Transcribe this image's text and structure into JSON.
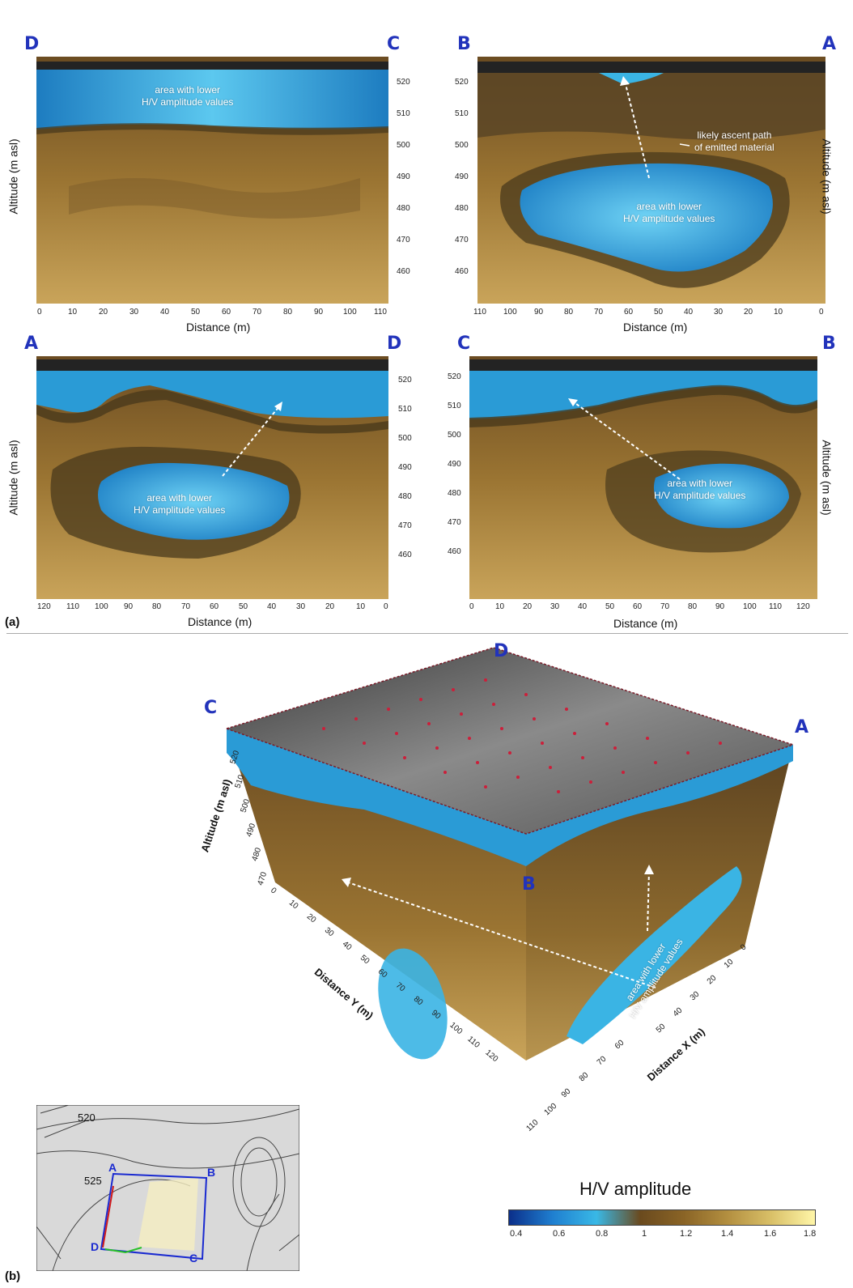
{
  "panel_a": {
    "label": "(a)",
    "sections": [
      {
        "left_label": "D",
        "right_label": "C",
        "annotations": [
          {
            "lines": [
              "area with lower",
              "H/V amplitude values"
            ]
          }
        ],
        "y_ticks": [
          "520",
          "510",
          "500",
          "490",
          "480",
          "470",
          "460"
        ],
        "x_ticks": [
          "0",
          "10",
          "20",
          "30",
          "40",
          "50",
          "60",
          "70",
          "80",
          "90",
          "100",
          "110"
        ],
        "x_axis_label": "Distance (m)",
        "y_axis_label": "Altitude (m asl)"
      },
      {
        "left_label": "B",
        "right_label": "A",
        "annotations": [
          {
            "lines": [
              "likely ascent path",
              "of emitted material"
            ]
          },
          {
            "lines": [
              "area with lower",
              "H/V amplitude values"
            ]
          }
        ],
        "y_ticks": [
          "520",
          "510",
          "500",
          "490",
          "480",
          "470",
          "460"
        ],
        "x_ticks": [
          "110",
          "100",
          "90",
          "80",
          "70",
          "60",
          "50",
          "40",
          "30",
          "20",
          "10",
          "0"
        ],
        "x_axis_label": "Distance (m)",
        "y_axis_label": "Altitude (m asl)"
      },
      {
        "left_label": "A",
        "right_label": "D",
        "annotations": [
          {
            "lines": [
              "area with lower",
              "H/V amplitude values"
            ]
          }
        ],
        "y_ticks": [
          "520",
          "510",
          "500",
          "490",
          "480",
          "470",
          "460"
        ],
        "x_ticks": [
          "120",
          "110",
          "100",
          "90",
          "80",
          "70",
          "60",
          "50",
          "40",
          "30",
          "20",
          "10",
          "0"
        ],
        "x_axis_label": "Distance (m)",
        "y_axis_label": "Altitude (m asl)"
      },
      {
        "left_label": "C",
        "right_label": "B",
        "annotations": [
          {
            "lines": [
              "area with lower",
              "H/V amplitude values"
            ]
          }
        ],
        "y_ticks": [
          "520",
          "510",
          "500",
          "490",
          "480",
          "470",
          "460"
        ],
        "x_ticks": [
          "0",
          "10",
          "20",
          "30",
          "40",
          "50",
          "60",
          "70",
          "80",
          "90",
          "100",
          "110",
          "120"
        ],
        "x_axis_label": "Distance (m)",
        "y_axis_label": "Altitude (m asl)"
      }
    ]
  },
  "panel_b": {
    "label": "(b)",
    "corners": {
      "top": "D",
      "left": "C",
      "right": "A",
      "front": "B"
    },
    "z_axis_label": "Altitude (m asl)",
    "z_ticks": [
      "520",
      "510",
      "500",
      "490",
      "480",
      "470"
    ],
    "y_axis_label": "Distance Y (m)",
    "y_ticks": [
      "0",
      "10",
      "20",
      "30",
      "40",
      "50",
      "60",
      "70",
      "80",
      "90",
      "100",
      "110",
      "120"
    ],
    "x_axis_label": "Distance X (m)",
    "x_ticks": [
      "0",
      "10",
      "20",
      "30",
      "40",
      "50",
      "60",
      "70",
      "80",
      "90",
      "100",
      "110"
    ],
    "annotation": [
      "area with lower",
      "H/V amplitude values"
    ]
  },
  "inset_map": {
    "labels": {
      "a": "A",
      "b": "B",
      "c": "C",
      "d": "D"
    },
    "contours": [
      "520",
      "525"
    ]
  },
  "colorbar": {
    "title": "H/V amplitude",
    "ticks": [
      "0.4",
      "0.6",
      "0.8",
      "1",
      "1.2",
      "1.4",
      "1.6",
      "1.8"
    ],
    "colors": [
      "#0b2f8a",
      "#1f7fd0",
      "#39b8e6",
      "#6a4a1e",
      "#8a6426",
      "#b38f40",
      "#d9c068",
      "#fff6a8"
    ]
  },
  "colors": {
    "corner_label": "#2233bb",
    "low_amplitude": "#3ab4e4",
    "high_amplitude": "#8a6426",
    "surface": "#4a4a4a",
    "survey_points": "#cc1f3a"
  }
}
